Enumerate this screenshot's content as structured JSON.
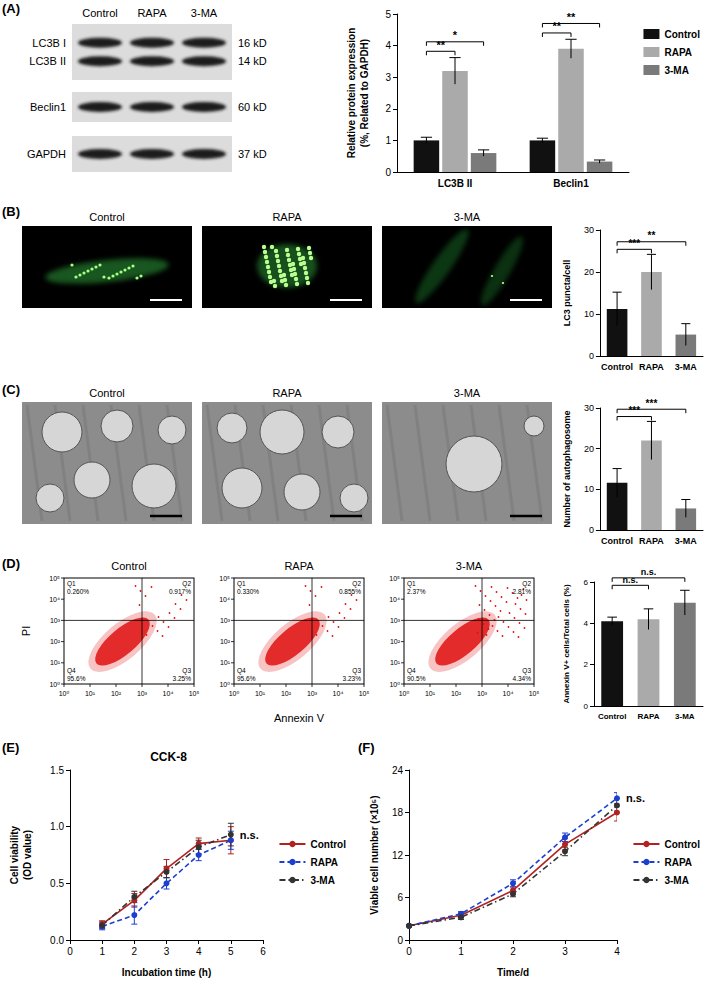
{
  "figure": {
    "panel_labels": [
      "(A)",
      "(B)",
      "(C)",
      "(D)",
      "(E)",
      "(F)"
    ],
    "western_blot": {
      "lanes": [
        "Control",
        "RAPA",
        "3-MA"
      ],
      "blots": [
        {
          "bands": [
            "LC3B I",
            "LC3B II"
          ],
          "sizes": [
            "16 kD",
            "14 kD"
          ]
        },
        {
          "bands": [
            "Beclin1"
          ],
          "sizes": [
            "60 kD"
          ]
        },
        {
          "bands": [
            "GAPDH"
          ],
          "sizes": [
            "37 kD"
          ]
        }
      ]
    },
    "fluorescence": {
      "titles": [
        "Control",
        "RAPA",
        "3-MA"
      ]
    },
    "electron_microscopy": {
      "titles": [
        "Control",
        "RAPA",
        "3-MA"
      ]
    },
    "flow_cytometry": {
      "titles": [
        "Control",
        "RAPA",
        "3-MA"
      ],
      "x_label": "Annexin V",
      "y_label": "PI",
      "lim": [
        1,
        100000
      ],
      "ticks": [
        {
          "value": 1,
          "label": "10⁰"
        },
        {
          "value": 10,
          "label": "10¹"
        },
        {
          "value": 100,
          "label": "10²"
        },
        {
          "value": 1000,
          "label": "10³"
        },
        {
          "value": 10000,
          "label": "10⁴"
        },
        {
          "value": 100000,
          "label": "10⁵"
        }
      ],
      "gate": [
        1000,
        1000
      ],
      "quadrants": [
        [
          {
            "name": "Q1",
            "value": "0.260%"
          },
          {
            "name": "Q2",
            "value": "0.917%"
          },
          {
            "name": "Q3",
            "value": "3.25%"
          },
          {
            "name": "Q4",
            "value": "95.6%"
          }
        ],
        [
          {
            "name": "Q1",
            "value": "0.330%"
          },
          {
            "name": "Q2",
            "value": "0.855%"
          },
          {
            "name": "Q3",
            "value": "3.23%"
          },
          {
            "name": "Q4",
            "value": "95.6%"
          }
        ],
        [
          {
            "name": "Q1",
            "value": "2.37%"
          },
          {
            "name": "Q2",
            "value": "2.81%"
          },
          {
            "name": "Q3",
            "value": "4.34%"
          },
          {
            "name": "Q4",
            "value": "90.5%"
          }
        ]
      ]
    }
  },
  "chart_data": [
    {
      "type": "bar",
      "categories": [
        "LC3B II",
        "Beclin1"
      ],
      "ylabel": "Relative protein expression\n(%, Related to GAPDH)",
      "ylim": [
        0,
        5
      ],
      "yticks": [
        0,
        1,
        2,
        3,
        4,
        5
      ],
      "grid": false,
      "legend": "right",
      "series": [
        {
          "name": "Control",
          "color": "#111111",
          "values": [
            1.0,
            1.0
          ],
          "errors": [
            0.1,
            0.07
          ]
        },
        {
          "name": "RAPA",
          "color": "#aaaaaa",
          "values": [
            3.2,
            3.9
          ],
          "errors": [
            0.42,
            0.3
          ]
        },
        {
          "name": "3-MA",
          "color": "#7a7a7a",
          "values": [
            0.6,
            0.33
          ],
          "errors": [
            0.1,
            0.05
          ]
        }
      ],
      "annotations": [
        {
          "category": "LC3B II",
          "pair": [
            "Control",
            "RAPA"
          ],
          "text": "**"
        },
        {
          "category": "LC3B II",
          "pair": [
            "Control",
            "3-MA"
          ],
          "text": "*"
        },
        {
          "category": "Beclin1",
          "pair": [
            "Control",
            "RAPA"
          ],
          "text": "**"
        },
        {
          "category": "Beclin1",
          "pair": [
            "Control",
            "3-MA"
          ],
          "text": "**"
        }
      ]
    },
    {
      "type": "bar",
      "categories": [
        "Control",
        "RAPA",
        "3-MA"
      ],
      "values": [
        11.2,
        20,
        5.1
      ],
      "errors": [
        4,
        4.2,
        2.6
      ],
      "colors": [
        "#111111",
        "#aaaaaa",
        "#7a7a7a"
      ],
      "ylabel": "LC3 puncta/cell",
      "ylim": [
        0,
        30
      ],
      "yticks": [
        0,
        10,
        20,
        30
      ],
      "grid": false,
      "annotations": [
        {
          "pair": [
            "Control",
            "RAPA"
          ],
          "text": "***"
        },
        {
          "pair": [
            "Control",
            "3-MA"
          ],
          "text": "**"
        }
      ]
    },
    {
      "type": "bar",
      "categories": [
        "Control",
        "RAPA",
        "3-MA"
      ],
      "values": [
        11.6,
        22,
        5.3
      ],
      "errors": [
        3.5,
        4.7,
        2.2
      ],
      "colors": [
        "#111111",
        "#aaaaaa",
        "#7a7a7a"
      ],
      "ylabel": "Number of autophagosome",
      "ylim": [
        0,
        30
      ],
      "yticks": [
        0,
        10,
        20,
        30
      ],
      "grid": false,
      "annotations": [
        {
          "pair": [
            "Control",
            "RAPA"
          ],
          "text": "***"
        },
        {
          "pair": [
            "Control",
            "3-MA"
          ],
          "text": "***"
        }
      ]
    },
    {
      "type": "bar",
      "categories": [
        "Control",
        "RAPA",
        "3-MA"
      ],
      "values": [
        4.1,
        4.2,
        5.0
      ],
      "errors": [
        0.2,
        0.5,
        0.6
      ],
      "colors": [
        "#111111",
        "#aaaaaa",
        "#7a7a7a"
      ],
      "ylabel": "Annexin V+ cells/Total cells (%)",
      "ylim": [
        0,
        6
      ],
      "yticks": [
        0,
        2,
        4,
        6
      ],
      "grid": false,
      "annotations": [
        {
          "pair": [
            "Control",
            "RAPA"
          ],
          "text": "n.s."
        },
        {
          "pair": [
            "Control",
            "3-MA"
          ],
          "text": "n.s."
        }
      ]
    },
    {
      "type": "line",
      "title": "CCK-8",
      "x": [
        1,
        2,
        3,
        4,
        5
      ],
      "xlabel": "Incubation time (h)",
      "ylabel": "Cell viability\n(OD value)",
      "xlim": [
        0,
        6
      ],
      "xticks": [
        0,
        1,
        2,
        3,
        4,
        5,
        6
      ],
      "ylim": [
        0,
        1.5
      ],
      "yticks": [
        {
          "value": 0,
          "label": "0.0"
        },
        0.5,
        {
          "value": 1,
          "label": "1.0"
        },
        1.5
      ],
      "grid": false,
      "legend": "right",
      "series": [
        {
          "name": "Control",
          "color": "#b22222",
          "marker": "circle",
          "line_style": "solid",
          "values": [
            0.14,
            0.35,
            0.63,
            0.85,
            0.88
          ],
          "errors": [
            0.03,
            0.06,
            0.08,
            0.05,
            0.12
          ]
        },
        {
          "name": "RAPA",
          "color": "#1c3fcf",
          "marker": "circle",
          "line_style": "dashed",
          "values": [
            0.12,
            0.22,
            0.5,
            0.75,
            0.88
          ],
          "errors": [
            0.03,
            0.08,
            0.05,
            0.05,
            0.08
          ]
        },
        {
          "name": "3-MA",
          "color": "#333333",
          "marker": "circle",
          "line_style": "dashdot",
          "values": [
            0.13,
            0.38,
            0.6,
            0.82,
            0.93
          ],
          "errors": [
            0.03,
            0.05,
            0.05,
            0.06,
            0.1
          ]
        }
      ],
      "annotations": [
        {
          "text": "n.s."
        }
      ]
    },
    {
      "type": "line",
      "x": [
        0,
        1,
        2,
        3,
        4
      ],
      "xlabel": "Time/d",
      "ylabel": "Viable cell number (×10⁵)",
      "xlim": [
        0,
        4
      ],
      "xticks": [
        0,
        1,
        2,
        3,
        4
      ],
      "ylim": [
        0,
        24
      ],
      "yticks": [
        0,
        6,
        12,
        18,
        24
      ],
      "grid": false,
      "legend": "right",
      "series": [
        {
          "name": "Control",
          "color": "#b22222",
          "marker": "circle",
          "line_style": "solid",
          "values": [
            2,
            3.5,
            7,
            13.5,
            18
          ],
          "errors": [
            0.2,
            0.3,
            0.5,
            0.8,
            1.2
          ]
        },
        {
          "name": "RAPA",
          "color": "#1c3fcf",
          "marker": "circle",
          "line_style": "dashed",
          "values": [
            2,
            3.7,
            8,
            14.5,
            20
          ],
          "errors": [
            0.2,
            0.3,
            0.5,
            0.6,
            0.8
          ]
        },
        {
          "name": "3-MA",
          "color": "#333333",
          "marker": "circle",
          "line_style": "dashdot",
          "values": [
            2,
            3.2,
            6.5,
            12.5,
            19
          ],
          "errors": [
            0.2,
            0.3,
            0.4,
            0.6,
            0.8
          ]
        }
      ],
      "annotations": [
        {
          "text": "n.s."
        }
      ]
    }
  ]
}
